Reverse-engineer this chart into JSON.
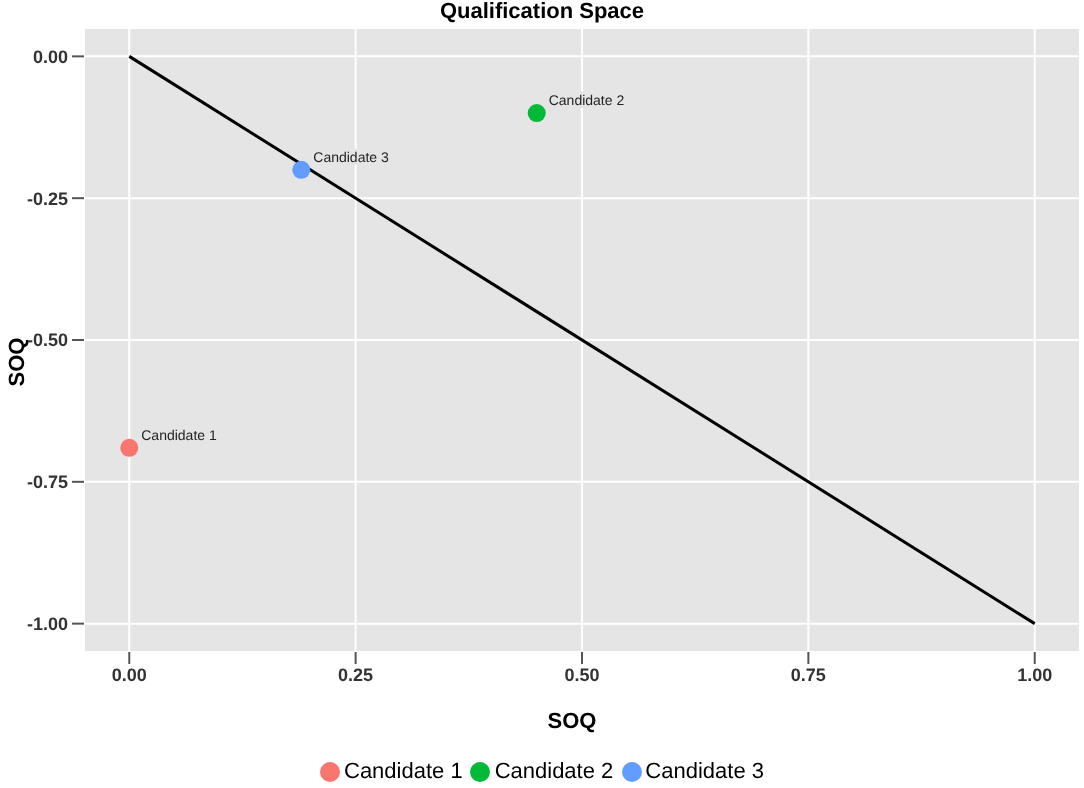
{
  "chart_data": {
    "type": "scatter",
    "title": "Qualification Space",
    "xlabel": "SOQ",
    "ylabel": "SOQ",
    "xlim": [
      -0.05,
      1.05
    ],
    "ylim": [
      -1.05,
      0.05
    ],
    "xticks": [
      {
        "value": 0,
        "label": "0.00"
      },
      {
        "value": 0.25,
        "label": "0.25"
      },
      {
        "value": 0.5,
        "label": "0.50"
      },
      {
        "value": 0.75,
        "label": "0.75"
      },
      {
        "value": 1,
        "label": "1.00"
      }
    ],
    "yticks": [
      {
        "value": -1,
        "label": "-1.00"
      },
      {
        "value": -0.75,
        "label": "-0.75"
      },
      {
        "value": -0.5,
        "label": "-0.50"
      },
      {
        "value": -0.25,
        "label": "-0.25"
      },
      {
        "value": 0,
        "label": "0.00"
      }
    ],
    "grid": true,
    "legend": "bottom",
    "marker": "circle",
    "series": [
      {
        "type": "line",
        "color": "#000000",
        "marker": "none",
        "x": [
          0,
          1
        ],
        "values": [
          0,
          -1
        ]
      },
      {
        "name": "Candidate 1",
        "color": "#f8766d",
        "x": [
          0
        ],
        "values": [
          -0.69
        ]
      },
      {
        "name": "Candidate 2",
        "color": "#00ba38",
        "x": [
          0.45
        ],
        "values": [
          -0.1
        ]
      },
      {
        "name": "Candidate 3",
        "color": "#619cff",
        "x": [
          0.19
        ],
        "values": [
          -0.2
        ]
      }
    ]
  }
}
